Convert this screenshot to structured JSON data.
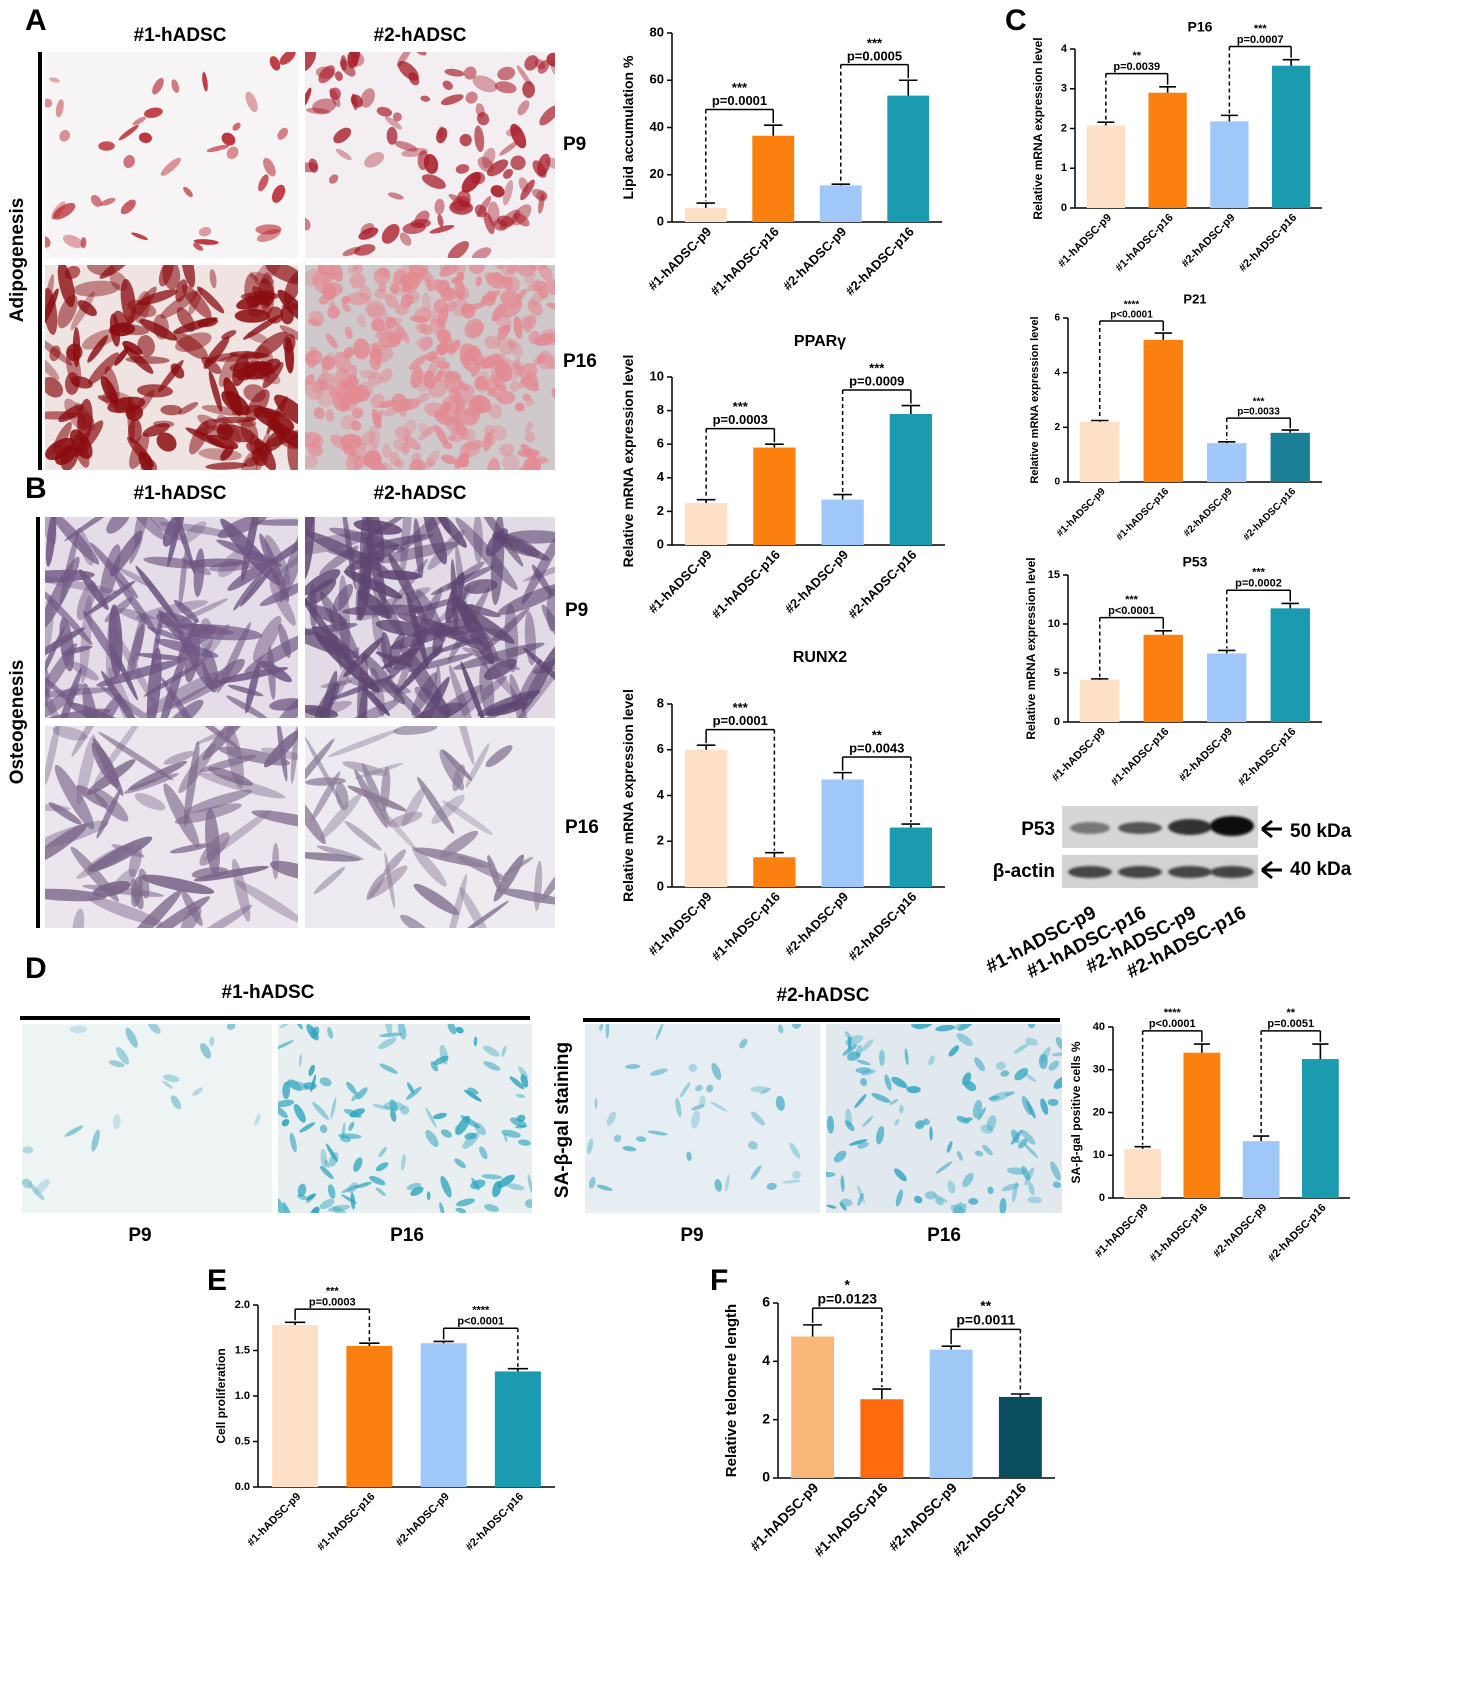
{
  "panel_a": {
    "letter": "A",
    "columns": [
      "#1-hADSC",
      "#2-hADSC"
    ],
    "rows": [
      "P9",
      "P16"
    ],
    "side": "Adipogenesis"
  },
  "panel_b": {
    "letter": "B",
    "columns": [
      "#1-hADSC",
      "#2-hADSC"
    ],
    "rows": [
      "P9",
      "P16"
    ],
    "side": "Osteogenesis"
  },
  "panel_c": {
    "letter": "C",
    "blot": {
      "rows": [
        "P53",
        "β-actin"
      ],
      "sizes": [
        "50 kDa",
        "40 kDa"
      ],
      "lanes": [
        "#1-hADSC-p9",
        "#1-hADSC-p16",
        "#2-hADSC-p9",
        "#2-hADSC-p16"
      ]
    }
  },
  "panel_d": {
    "letter": "D",
    "groups": [
      "#1-hADSC",
      "#2-hADSC"
    ],
    "rows": [
      "P9",
      "P16",
      "P9",
      "P16"
    ],
    "side": "SA-β-gal staining"
  },
  "panel_e": {
    "letter": "E"
  },
  "panel_f": {
    "letter": "F"
  },
  "chart_data": [
    {
      "type": "bar",
      "ylabel": "Lipid accumulation %",
      "categories": [
        "#1-hADSC-p9",
        "#1-hADSC-p16",
        "#2-hADSC-p9",
        "#2-hADSC-p16"
      ],
      "values": [
        6,
        36.5,
        15.5,
        53.5
      ],
      "errors": [
        2,
        4.5,
        0.5,
        6.5
      ],
      "colors": [
        "#fde0c5",
        "#fb8010",
        "#9fc8f8",
        "#1a9bb0"
      ],
      "ylim": [
        0,
        80
      ],
      "yticks": [
        0,
        20,
        40,
        60,
        80
      ],
      "annotations": [
        {
          "stars": "***",
          "p": "p=0.0001"
        },
        {
          "stars": "***",
          "p": "p=0.0005"
        }
      ]
    },
    {
      "type": "bar",
      "title": "PPARγ",
      "ylabel": "Relative mRNA expression level",
      "categories": [
        "#1-hADSC-p9",
        "#1-hADSC-p16",
        "#2-hADSC-p9",
        "#2-hADSC-p16"
      ],
      "values": [
        2.5,
        5.8,
        2.7,
        7.8
      ],
      "errors": [
        0.2,
        0.2,
        0.3,
        0.5
      ],
      "colors": [
        "#fde0c5",
        "#fb8010",
        "#9fc8f8",
        "#1a9bb0"
      ],
      "ylim": [
        0,
        10
      ],
      "yticks": [
        0,
        2,
        4,
        6,
        8,
        10
      ],
      "annotations": [
        {
          "stars": "***",
          "p": "p=0.0003"
        },
        {
          "stars": "***",
          "p": "p=0.0009"
        }
      ]
    },
    {
      "type": "bar",
      "title": "RUNX2",
      "ylabel": "Relative mRNA expression level",
      "categories": [
        "#1-hADSC-p9",
        "#1-hADSC-p16",
        "#2-hADSC-p9",
        "#2-hADSC-p16"
      ],
      "values": [
        6.0,
        1.3,
        4.7,
        2.6
      ],
      "errors": [
        0.2,
        0.2,
        0.3,
        0.15
      ],
      "colors": [
        "#fde0c5",
        "#fb8010",
        "#9fc8f8",
        "#1a9bb0"
      ],
      "ylim": [
        0,
        8
      ],
      "yticks": [
        0,
        2,
        4,
        6,
        8
      ],
      "annotations": [
        {
          "stars": "***",
          "p": "p=0.0001"
        },
        {
          "stars": "**",
          "p": "p=0.0043"
        }
      ]
    },
    {
      "type": "bar",
      "title": "P16",
      "ylabel": "Relative  mRNA expression level",
      "categories": [
        "#1-hADSC-p9",
        "#1-hADSC-p16",
        "#2-hADSC-p9",
        "#2-hADSC-p16"
      ],
      "values": [
        2.08,
        2.9,
        2.18,
        3.58
      ],
      "errors": [
        0.08,
        0.15,
        0.15,
        0.15
      ],
      "colors": [
        "#fde0c5",
        "#fb8010",
        "#9fc8f8",
        "#1a9bb0"
      ],
      "ylim": [
        0,
        4
      ],
      "yticks": [
        0,
        1,
        2,
        3,
        4
      ],
      "annotations": [
        {
          "stars": "**",
          "p": "p=0.0039"
        },
        {
          "stars": "***",
          "p": "p=0.0007"
        }
      ]
    },
    {
      "type": "bar",
      "title": "P21",
      "ylabel": "Relative  mRNA expression level",
      "categories": [
        "#1-hADSC-p9",
        "#1-hADSC-p16",
        "#2-hADSC-p9",
        "#2-hADSC-p16"
      ],
      "values": [
        2.2,
        5.2,
        1.42,
        1.8
      ],
      "errors": [
        0.05,
        0.25,
        0.05,
        0.1
      ],
      "colors": [
        "#fde0c5",
        "#fb8010",
        "#9fc8f8",
        "#1b7f97"
      ],
      "ylim": [
        0,
        6
      ],
      "yticks": [
        0,
        2,
        4,
        6
      ],
      "annotations": [
        {
          "stars": "****",
          "p": "p<0.0001"
        },
        {
          "stars": "***",
          "p": "p=0.0033"
        }
      ]
    },
    {
      "type": "bar",
      "title": "P53",
      "ylabel": "Relative  mRNA expression level",
      "categories": [
        "#1-hADSC-p9",
        "#1-hADSC-p16",
        "#2-hADSC-p9",
        "#2-hADSC-p16"
      ],
      "values": [
        4.3,
        8.9,
        7.0,
        11.6
      ],
      "errors": [
        0.1,
        0.4,
        0.3,
        0.5
      ],
      "colors": [
        "#fde0c5",
        "#fb8010",
        "#9fc8f8",
        "#1a9bb0"
      ],
      "ylim": [
        0,
        15
      ],
      "yticks": [
        0,
        5,
        10,
        15
      ],
      "annotations": [
        {
          "stars": "***",
          "p": "p<0.0001"
        },
        {
          "stars": "***",
          "p": "p=0.0002"
        }
      ]
    },
    {
      "type": "bar",
      "ylabel": "SA-β-gal positive cells %",
      "categories": [
        "#1-hADSC-p9",
        "#1-hADSC-p16",
        "#2-hADSC-p9",
        "#2-hADSC-p16"
      ],
      "values": [
        11.5,
        34,
        13.3,
        32.5
      ],
      "errors": [
        0.5,
        2,
        1.2,
        3.5
      ],
      "colors": [
        "#fde0c5",
        "#fb8010",
        "#9fc8f8",
        "#1a9bb0"
      ],
      "ylim": [
        0,
        40
      ],
      "yticks": [
        0,
        10,
        20,
        30,
        40
      ],
      "annotations": [
        {
          "stars": "****",
          "p": "p<0.0001"
        },
        {
          "stars": "**",
          "p": "p=0.0051"
        }
      ]
    },
    {
      "type": "bar",
      "ylabel": "Cell  proliferation",
      "categories": [
        "#1-hADSC-p9",
        "#1-hADSC-p16",
        "#2-hADSC-p9",
        "#2-hADSC-p16"
      ],
      "values": [
        1.78,
        1.55,
        1.58,
        1.27
      ],
      "errors": [
        0.03,
        0.03,
        0.02,
        0.03
      ],
      "colors": [
        "#fde0c5",
        "#fb8010",
        "#9fc8f8",
        "#1a9bb0"
      ],
      "ylim": [
        0,
        2
      ],
      "yticks": [
        {
          "value": 0,
          "label": "0.0"
        },
        {
          "value": 0.5,
          "label": "0.5"
        },
        {
          "value": 1,
          "label": "1.0"
        },
        {
          "value": 1.5,
          "label": "1.5"
        },
        {
          "value": 2,
          "label": "2.0"
        }
      ],
      "annotations": [
        {
          "stars": "***",
          "p": "p=0.0003"
        },
        {
          "stars": "****",
          "p": "p<0.0001"
        }
      ]
    },
    {
      "type": "bar",
      "ylabel": "Relative telomere length",
      "categories": [
        "#1-hADSC-p9",
        "#1-hADSC-p16",
        "#2-hADSC-p9",
        "#2-hADSC-p16"
      ],
      "values": [
        4.85,
        2.7,
        4.4,
        2.78
      ],
      "errors": [
        0.4,
        0.35,
        0.12,
        0.1
      ],
      "colors": [
        "#fbb77a",
        "#ff6a0e",
        "#9ec8f5",
        "#0a4d5f"
      ],
      "ylim": [
        0,
        6
      ],
      "yticks": [
        0,
        2,
        4,
        6
      ],
      "annotations": [
        {
          "stars": "*",
          "p": "p=0.0123"
        },
        {
          "stars": "**",
          "p": "p=0.0011"
        }
      ]
    }
  ]
}
